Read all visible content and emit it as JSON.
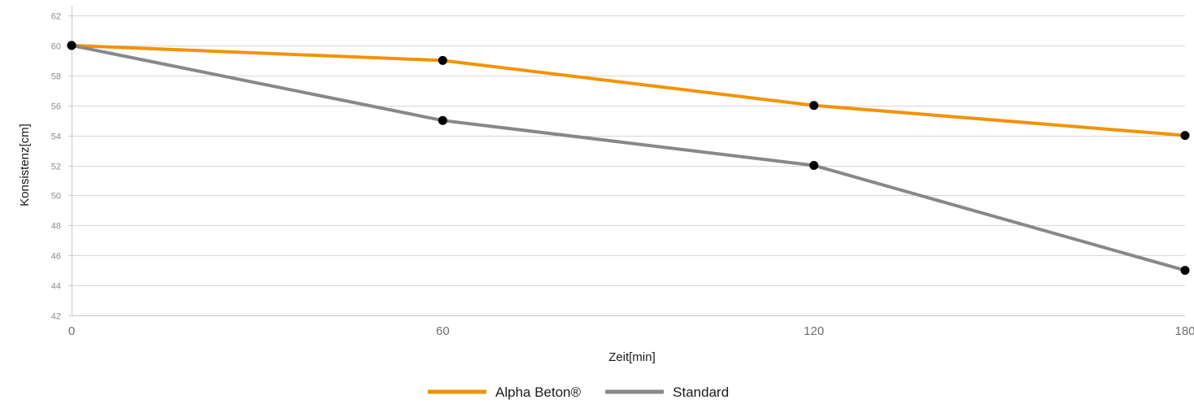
{
  "chart_data": {
    "type": "line",
    "x": [
      0,
      60,
      120,
      180
    ],
    "xlabel": "Zeit[min]",
    "ylabel": "Konsistenz[cm]",
    "xlim": [
      0,
      180
    ],
    "ylim": [
      42,
      62
    ],
    "x_ticks": [
      0,
      60,
      120,
      180
    ],
    "y_ticks": [
      42,
      44,
      46,
      48,
      50,
      52,
      54,
      56,
      58,
      60,
      62
    ],
    "grid": "horizontal",
    "legend_position": "bottom-center",
    "marker_color": "#000000",
    "series": [
      {
        "name": "Alpha Beton®",
        "color": "#f39200",
        "values": [
          60,
          59,
          56,
          54
        ]
      },
      {
        "name": "Standard",
        "color": "#87888a",
        "values": [
          60,
          55,
          52,
          45
        ]
      }
    ]
  }
}
